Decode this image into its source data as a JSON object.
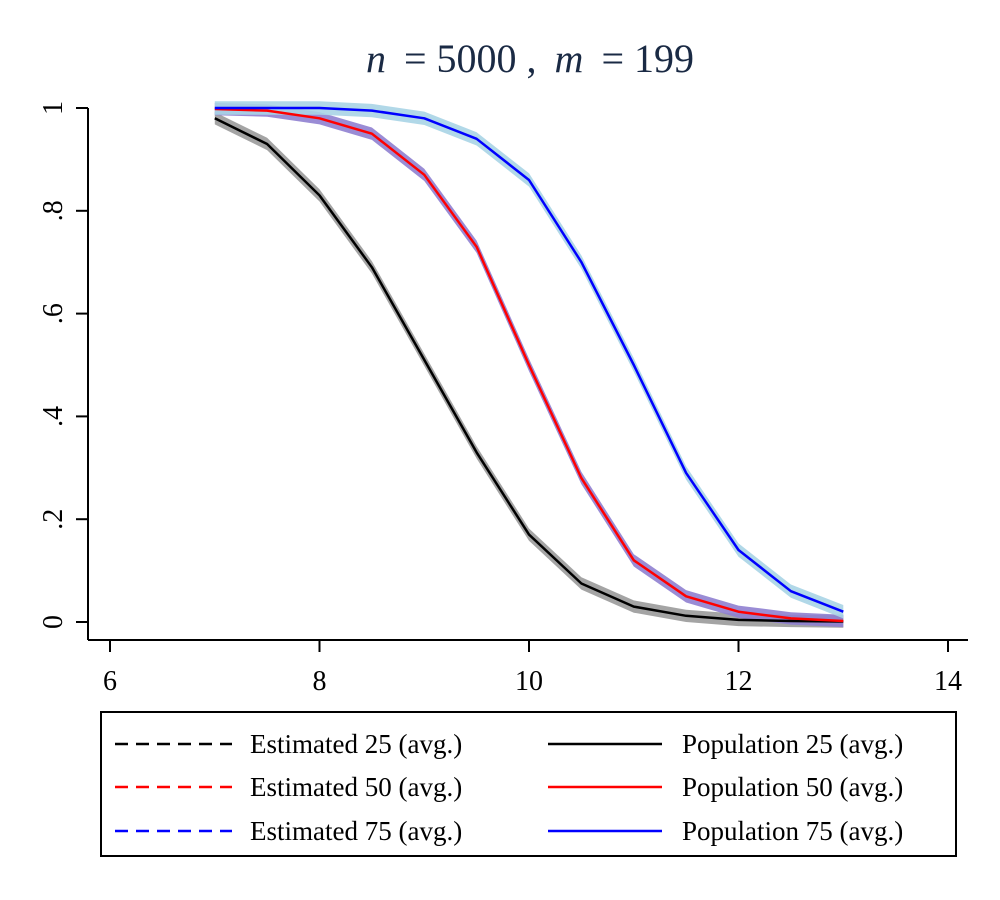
{
  "chart_data": {
    "type": "line",
    "title": {
      "n_label": "n",
      "n_value": "= 5000 ,",
      "m_label": "m",
      "m_value": "= 199"
    },
    "xlabel": "",
    "ylabel": "",
    "xlim": [
      6,
      14
    ],
    "ylim": [
      0,
      1
    ],
    "x_ticks": [
      {
        "value": 6,
        "label": "6"
      },
      {
        "value": 8,
        "label": "8"
      },
      {
        "value": 10,
        "label": "10"
      },
      {
        "value": 12,
        "label": "12"
      },
      {
        "value": 14,
        "label": "14"
      }
    ],
    "y_ticks": [
      {
        "value": 0,
        "label": "0"
      },
      {
        "value": 0.2,
        "label": ".2"
      },
      {
        "value": 0.4,
        "label": ".4"
      },
      {
        "value": 0.6,
        "label": ".6"
      },
      {
        "value": 0.8,
        "label": ".8"
      },
      {
        "value": 1,
        "label": "1"
      }
    ],
    "x": [
      7,
      7.5,
      8,
      8.5,
      9,
      9.5,
      10,
      10.5,
      11,
      11.5,
      12,
      12.5,
      13
    ],
    "series": [
      {
        "name": "Population 25 (avg.)",
        "key": "pop25",
        "color": "#000000",
        "band_color": "#9a9a9a",
        "band_halfwidth": 0.012,
        "values": [
          0.98,
          0.93,
          0.83,
          0.69,
          0.51,
          0.33,
          0.17,
          0.075,
          0.03,
          0.012,
          0.004,
          0.002,
          0.001
        ]
      },
      {
        "name": "Population 50 (avg.)",
        "key": "pop50",
        "color": "#ff0000",
        "band_color": "#8f7fd0",
        "band_halfwidth": 0.012,
        "values": [
          0.998,
          0.995,
          0.98,
          0.95,
          0.87,
          0.73,
          0.5,
          0.28,
          0.12,
          0.05,
          0.02,
          0.007,
          0.002
        ]
      },
      {
        "name": "Population 75 (avg.)",
        "key": "pop75",
        "color": "#0000ff",
        "band_color": "#a8d4e6",
        "band_halfwidth": 0.013,
        "values": [
          1.0,
          1.0,
          1.0,
          0.995,
          0.98,
          0.94,
          0.86,
          0.7,
          0.5,
          0.29,
          0.14,
          0.06,
          0.02
        ]
      }
    ],
    "legend": {
      "position": "bottom",
      "entries": [
        {
          "label": "Estimated 25 (avg.)",
          "color": "#000000",
          "style": "dashed"
        },
        {
          "label": "Population 25 (avg.)",
          "color": "#000000",
          "style": "solid"
        },
        {
          "label": "Estimated 50 (avg.)",
          "color": "#ff0000",
          "style": "dashed"
        },
        {
          "label": "Population 50 (avg.)",
          "color": "#ff0000",
          "style": "solid"
        },
        {
          "label": "Estimated 75 (avg.)",
          "color": "#0000ff",
          "style": "dashed"
        },
        {
          "label": "Population 75 (avg.)",
          "color": "#0000ff",
          "style": "solid"
        }
      ]
    }
  }
}
